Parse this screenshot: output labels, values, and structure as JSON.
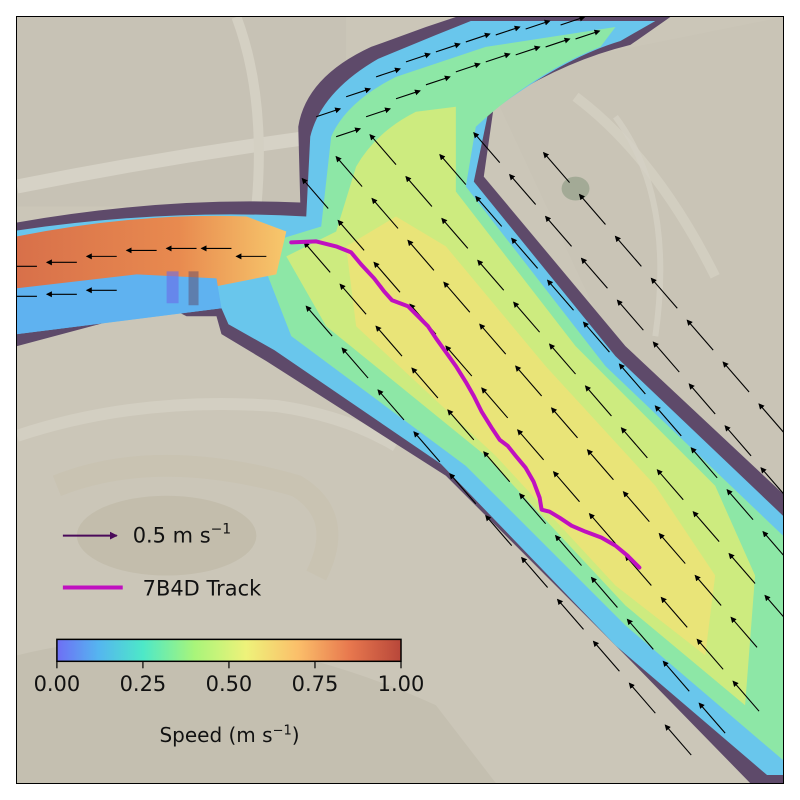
{
  "legend": {
    "arrow_label": "0.5 m s",
    "arrow_label_sup": "−1",
    "track_label": "7B4D Track"
  },
  "colorbar": {
    "ticks": [
      "0.00",
      "0.25",
      "0.50",
      "0.75",
      "1.00"
    ],
    "label_main": "Speed (m s",
    "label_sup": "−1",
    "label_end": ")",
    "range": [
      0,
      1
    ]
  },
  "colors": {
    "track": "#c010c0",
    "arrow_legend": "#4a0a5a",
    "bank": "#5e4a6a",
    "background": "#cbc6b8"
  },
  "icons": {
    "legend_arrow": "arrow-icon",
    "legend_track": "track-line-icon"
  }
}
